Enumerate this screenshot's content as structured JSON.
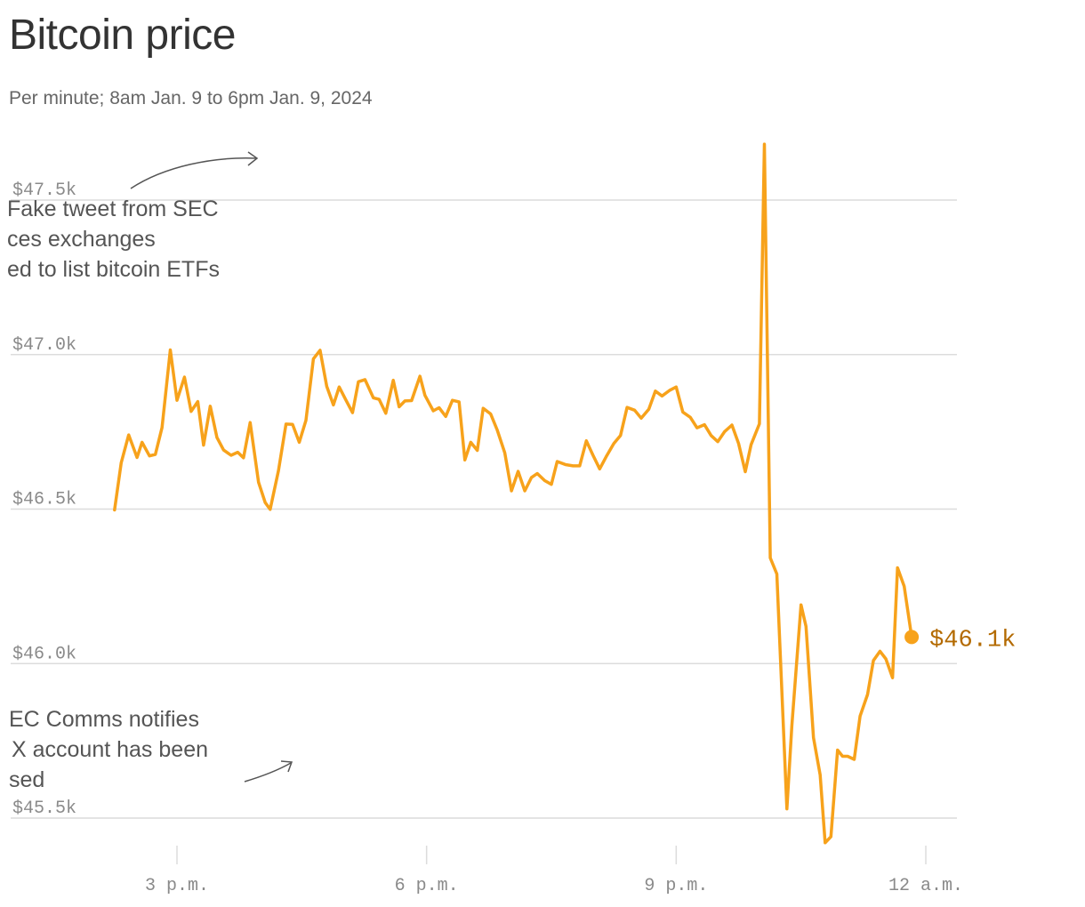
{
  "header": {
    "title": "Bitcoin price",
    "subtitle": "Per minute; 8am Jan. 9 to 6pm Jan. 9, 2024"
  },
  "annotations": {
    "fake_tweet": [
      "Fake tweet from SEC",
      "ces exchanges",
      "ed to list bitcoin ETFs"
    ],
    "sec_comms": [
      "EC Comms notifies",
      "X account has been",
      "sed"
    ]
  },
  "end_label": "$46.1k",
  "colors": {
    "line": "#f7a21b",
    "end_label": "#b36a00",
    "grid": "#dcdcdc",
    "text": "#333333"
  },
  "chart_data": {
    "type": "line",
    "title": "Bitcoin price",
    "subtitle": "Per minute; 8am Jan. 9 to 6pm Jan. 9, 2024",
    "y_ticks": [
      {
        "value": 45500,
        "label": "$45.5k"
      },
      {
        "value": 46000,
        "label": "$46.0k"
      },
      {
        "value": 46500,
        "label": "$46.5k"
      },
      {
        "value": 47000,
        "label": "$47.0k"
      },
      {
        "value": 47500,
        "label": "$47.5k"
      }
    ],
    "x_ticks": [
      {
        "value": 15,
        "label": "3 p.m."
      },
      {
        "value": 18,
        "label": "6 p.m."
      },
      {
        "value": 21,
        "label": "9 p.m."
      },
      {
        "value": 24,
        "label": "12 a.m."
      }
    ],
    "ylim": [
      45420,
      47700
    ],
    "xlim": [
      14.25,
      24.35
    ],
    "grid": true,
    "series": [
      {
        "color": "#f7a21b",
        "points": [
          [
            14.25,
            46497
          ],
          [
            14.33,
            46650
          ],
          [
            14.42,
            46740
          ],
          [
            14.52,
            46667
          ],
          [
            14.58,
            46716
          ],
          [
            14.67,
            46672
          ],
          [
            14.74,
            46677
          ],
          [
            14.82,
            46764
          ],
          [
            14.92,
            47015
          ],
          [
            15.0,
            46852
          ],
          [
            15.09,
            46927
          ],
          [
            15.17,
            46816
          ],
          [
            15.25,
            46848
          ],
          [
            15.32,
            46707
          ],
          [
            15.4,
            46833
          ],
          [
            15.48,
            46732
          ],
          [
            15.56,
            46691
          ],
          [
            15.65,
            46674
          ],
          [
            15.73,
            46684
          ],
          [
            15.8,
            46666
          ],
          [
            15.88,
            46780
          ],
          [
            15.98,
            46587
          ],
          [
            16.06,
            46521
          ],
          [
            16.12,
            46499
          ],
          [
            16.22,
            46624
          ],
          [
            16.31,
            46775
          ],
          [
            16.39,
            46774
          ],
          [
            16.47,
            46716
          ],
          [
            16.55,
            46787
          ],
          [
            16.64,
            46986
          ],
          [
            16.72,
            47014
          ],
          [
            16.8,
            46897
          ],
          [
            16.88,
            46837
          ],
          [
            16.95,
            46895
          ],
          [
            17.03,
            46853
          ],
          [
            17.11,
            46812
          ],
          [
            17.18,
            46912
          ],
          [
            17.26,
            46919
          ],
          [
            17.36,
            46860
          ],
          [
            17.43,
            46855
          ],
          [
            17.51,
            46810
          ],
          [
            17.6,
            46917
          ],
          [
            17.67,
            46831
          ],
          [
            17.74,
            46850
          ],
          [
            17.82,
            46851
          ],
          [
            17.92,
            46930
          ],
          [
            17.98,
            46868
          ],
          [
            18.08,
            46818
          ],
          [
            18.15,
            46828
          ],
          [
            18.23,
            46800
          ],
          [
            18.31,
            46852
          ],
          [
            18.39,
            46847
          ],
          [
            18.46,
            46659
          ],
          [
            18.53,
            46716
          ],
          [
            18.61,
            46690
          ],
          [
            18.68,
            46826
          ],
          [
            18.77,
            46808
          ],
          [
            18.85,
            46755
          ],
          [
            18.94,
            46682
          ],
          [
            19.02,
            46559
          ],
          [
            19.1,
            46622
          ],
          [
            19.18,
            46559
          ],
          [
            19.26,
            46602
          ],
          [
            19.33,
            46615
          ],
          [
            19.42,
            46592
          ],
          [
            19.5,
            46580
          ],
          [
            19.57,
            46654
          ],
          [
            19.67,
            46644
          ],
          [
            19.76,
            46640
          ],
          [
            19.84,
            46640
          ],
          [
            19.92,
            46721
          ],
          [
            20.0,
            46674
          ],
          [
            20.08,
            46630
          ],
          [
            20.16,
            46670
          ],
          [
            20.25,
            46712
          ],
          [
            20.33,
            46738
          ],
          [
            20.41,
            46829
          ],
          [
            20.5,
            46820
          ],
          [
            20.58,
            46794
          ],
          [
            20.67,
            46823
          ],
          [
            20.75,
            46882
          ],
          [
            20.83,
            46866
          ],
          [
            20.92,
            46884
          ],
          [
            21.0,
            46895
          ],
          [
            21.08,
            46814
          ],
          [
            21.17,
            46797
          ],
          [
            21.25,
            46763
          ],
          [
            21.34,
            46773
          ],
          [
            21.42,
            46738
          ],
          [
            21.5,
            46718
          ],
          [
            21.58,
            46750
          ],
          [
            21.67,
            46772
          ],
          [
            21.75,
            46712
          ],
          [
            21.83,
            46621
          ],
          [
            21.9,
            46708
          ],
          [
            22.0,
            46776
          ],
          [
            22.06,
            47681
          ],
          [
            22.13,
            46342
          ],
          [
            22.21,
            46290
          ],
          [
            22.33,
            45530
          ],
          [
            22.39,
            45800
          ],
          [
            22.5,
            46190
          ],
          [
            22.56,
            46120
          ],
          [
            22.65,
            45760
          ],
          [
            22.73,
            45640
          ],
          [
            22.79,
            45420
          ],
          [
            22.86,
            45440
          ],
          [
            22.94,
            45720
          ],
          [
            23.0,
            45700
          ],
          [
            23.06,
            45700
          ],
          [
            23.14,
            45690
          ],
          [
            23.21,
            45830
          ],
          [
            23.3,
            45900
          ],
          [
            23.37,
            46010
          ],
          [
            23.45,
            46040
          ],
          [
            23.52,
            46015
          ],
          [
            23.6,
            45954
          ],
          [
            23.66,
            46310
          ],
          [
            23.74,
            46250
          ],
          [
            23.83,
            46086
          ]
        ]
      }
    ],
    "end_point": {
      "x": 23.83,
      "y": 46086
    }
  }
}
